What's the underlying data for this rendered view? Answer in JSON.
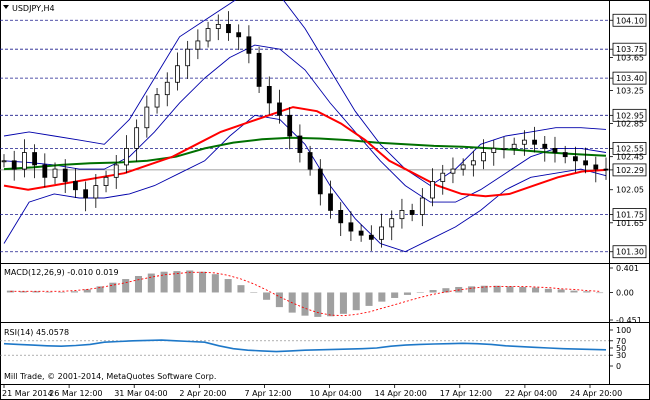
{
  "window": {
    "title": "USDJPY,H4",
    "copyright": "Mill Trade, © 2001-2014, MetaQuotes Software Corp."
  },
  "chart_data": {
    "type": "candlestick",
    "symbol": "USDJPY",
    "timeframe": "H4",
    "price_axis": {
      "ylim": [
        101.2,
        104.2
      ],
      "ticks": [
        "104.10",
        "103.75",
        "103.65",
        "103.40",
        "103.25",
        "102.95",
        "102.85",
        "102.55",
        "102.45",
        "102.29",
        "102.05",
        "101.75",
        "101.65",
        "101.30"
      ],
      "boxed_levels": [
        104.1,
        103.75,
        103.4,
        102.95,
        102.55,
        102.29,
        101.75,
        101.3
      ],
      "current_price": 102.29
    },
    "time_axis": {
      "labels": [
        "21 Mar 2014",
        "26 Mar 12:00",
        "31 Mar 04:00",
        "2 Apr 20:00",
        "7 Apr 12:00",
        "10 Apr 04:00",
        "14 Apr 20:00",
        "17 Apr 12:00",
        "22 Apr 04:00",
        "24 Apr 20:00"
      ]
    },
    "series": [
      {
        "name": "price",
        "values": [
          102.4,
          102.3,
          102.5,
          102.35,
          102.2,
          102.3,
          102.15,
          102.05,
          101.95,
          102.1,
          102.2,
          102.35,
          102.55,
          102.8,
          103.05,
          103.2,
          103.35,
          103.55,
          103.75,
          103.85,
          104.0,
          104.05,
          103.95,
          103.9,
          103.7,
          103.3,
          103.1,
          102.95,
          102.7,
          102.5,
          102.3,
          102.0,
          101.8,
          101.65,
          101.55,
          101.5,
          101.45,
          101.6,
          101.7,
          101.8,
          101.75,
          101.95,
          102.15,
          102.25,
          102.3,
          102.35,
          102.4,
          102.5,
          102.55,
          102.55,
          102.6,
          102.65,
          102.6,
          102.55,
          102.5,
          102.45,
          102.4,
          102.35,
          102.3,
          102.29
        ]
      },
      {
        "name": "MA-red",
        "values": [
          102.1,
          102.05,
          102.1,
          102.15,
          102.2,
          102.25,
          102.35,
          102.45,
          102.6,
          102.75,
          102.85,
          102.95,
          103.05,
          103.0,
          102.85,
          102.65,
          102.4,
          102.25,
          102.1,
          102.0,
          101.97,
          102.0,
          102.1,
          102.2,
          102.27,
          102.29
        ]
      },
      {
        "name": "MA-green",
        "values": [
          102.3,
          102.32,
          102.35,
          102.37,
          102.38,
          102.4,
          102.45,
          102.55,
          102.62,
          102.66,
          102.68,
          102.67,
          102.65,
          102.62,
          102.6,
          102.58,
          102.57,
          102.55,
          102.53,
          102.5,
          102.48,
          102.46
        ]
      },
      {
        "name": "BB-upper",
        "values": [
          102.7,
          102.75,
          102.7,
          102.65,
          102.6,
          102.9,
          103.4,
          103.9,
          104.1,
          104.3,
          104.5,
          104.4,
          104.0,
          103.5,
          103.0,
          102.6,
          102.3,
          102.1,
          102.3,
          102.6,
          102.7,
          102.75,
          102.8,
          102.8,
          102.78
        ]
      },
      {
        "name": "BB-middle",
        "values": [
          102.4,
          102.38,
          102.35,
          102.3,
          102.3,
          102.45,
          102.75,
          103.1,
          103.4,
          103.65,
          103.8,
          103.75,
          103.5,
          103.1,
          102.75,
          102.4,
          102.1,
          101.9,
          101.9,
          102.05,
          102.25,
          102.45,
          102.55,
          102.55,
          102.5
        ]
      },
      {
        "name": "BB-lower",
        "values": [
          101.4,
          101.9,
          102.0,
          101.95,
          101.95,
          102.0,
          102.1,
          102.25,
          102.4,
          102.7,
          102.95,
          102.9,
          102.6,
          102.1,
          101.7,
          101.4,
          101.3,
          101.45,
          101.6,
          101.8,
          102.05,
          102.2,
          102.25,
          102.3,
          102.22
        ]
      }
    ],
    "macd": {
      "label": "MACD(12,26,9) -0.010 0.019",
      "ylim": [
        -0.451,
        0.401
      ],
      "ticks": [
        "0.401",
        "0.00",
        "-0.451"
      ],
      "histogram": [
        0.03,
        0.02,
        0.02,
        0.01,
        0.0,
        0.02,
        0.05,
        0.1,
        0.16,
        0.22,
        0.27,
        0.31,
        0.34,
        0.35,
        0.36,
        0.34,
        0.3,
        0.22,
        0.12,
        0.0,
        -0.12,
        -0.24,
        -0.33,
        -0.38,
        -0.4,
        -0.39,
        -0.35,
        -0.29,
        -0.22,
        -0.15,
        -0.09,
        -0.04,
        0.0,
        0.04,
        0.07,
        0.09,
        0.1,
        0.11,
        0.11,
        0.1,
        0.09,
        0.08,
        0.06,
        0.05,
        0.03,
        0.02,
        -0.01
      ],
      "signal": [
        0.02,
        0.02,
        0.02,
        0.02,
        0.02,
        0.03,
        0.05,
        0.08,
        0.12,
        0.16,
        0.21,
        0.25,
        0.29,
        0.31,
        0.33,
        0.33,
        0.32,
        0.28,
        0.22,
        0.14,
        0.04,
        -0.07,
        -0.17,
        -0.26,
        -0.33,
        -0.37,
        -0.38,
        -0.36,
        -0.32,
        -0.26,
        -0.2,
        -0.14,
        -0.08,
        -0.03,
        0.01,
        0.04,
        0.07,
        0.09,
        0.1,
        0.1,
        0.1,
        0.09,
        0.08,
        0.06,
        0.05,
        0.03,
        0.02
      ]
    },
    "rsi": {
      "label": "RSI(14) 45.0578",
      "ylim": [
        0,
        100
      ],
      "ticks": [
        "100",
        "70",
        "50",
        "30",
        "0"
      ],
      "values": [
        62,
        60,
        58,
        56,
        55,
        57,
        60,
        66,
        68,
        70,
        71,
        72,
        70,
        68,
        66,
        56,
        48,
        44,
        42,
        40,
        42,
        44,
        45,
        46,
        47,
        48,
        50,
        55,
        58,
        60,
        61,
        62,
        63,
        62,
        60,
        56,
        54,
        52,
        50,
        48,
        47,
        46,
        45
      ]
    },
    "grid": false
  },
  "colors": {
    "background": "#ffffff",
    "candle": "#000000",
    "ma_red": "#ff0000",
    "ma_green": "#007000",
    "bollinger": "#0000aa",
    "macd_hist": "#a0a0a0",
    "macd_signal": "#ff0000",
    "rsi": "#1e78c8",
    "dashed_level": "#1a1a8c"
  },
  "icons": {
    "menu": "chart-menu-icon"
  }
}
